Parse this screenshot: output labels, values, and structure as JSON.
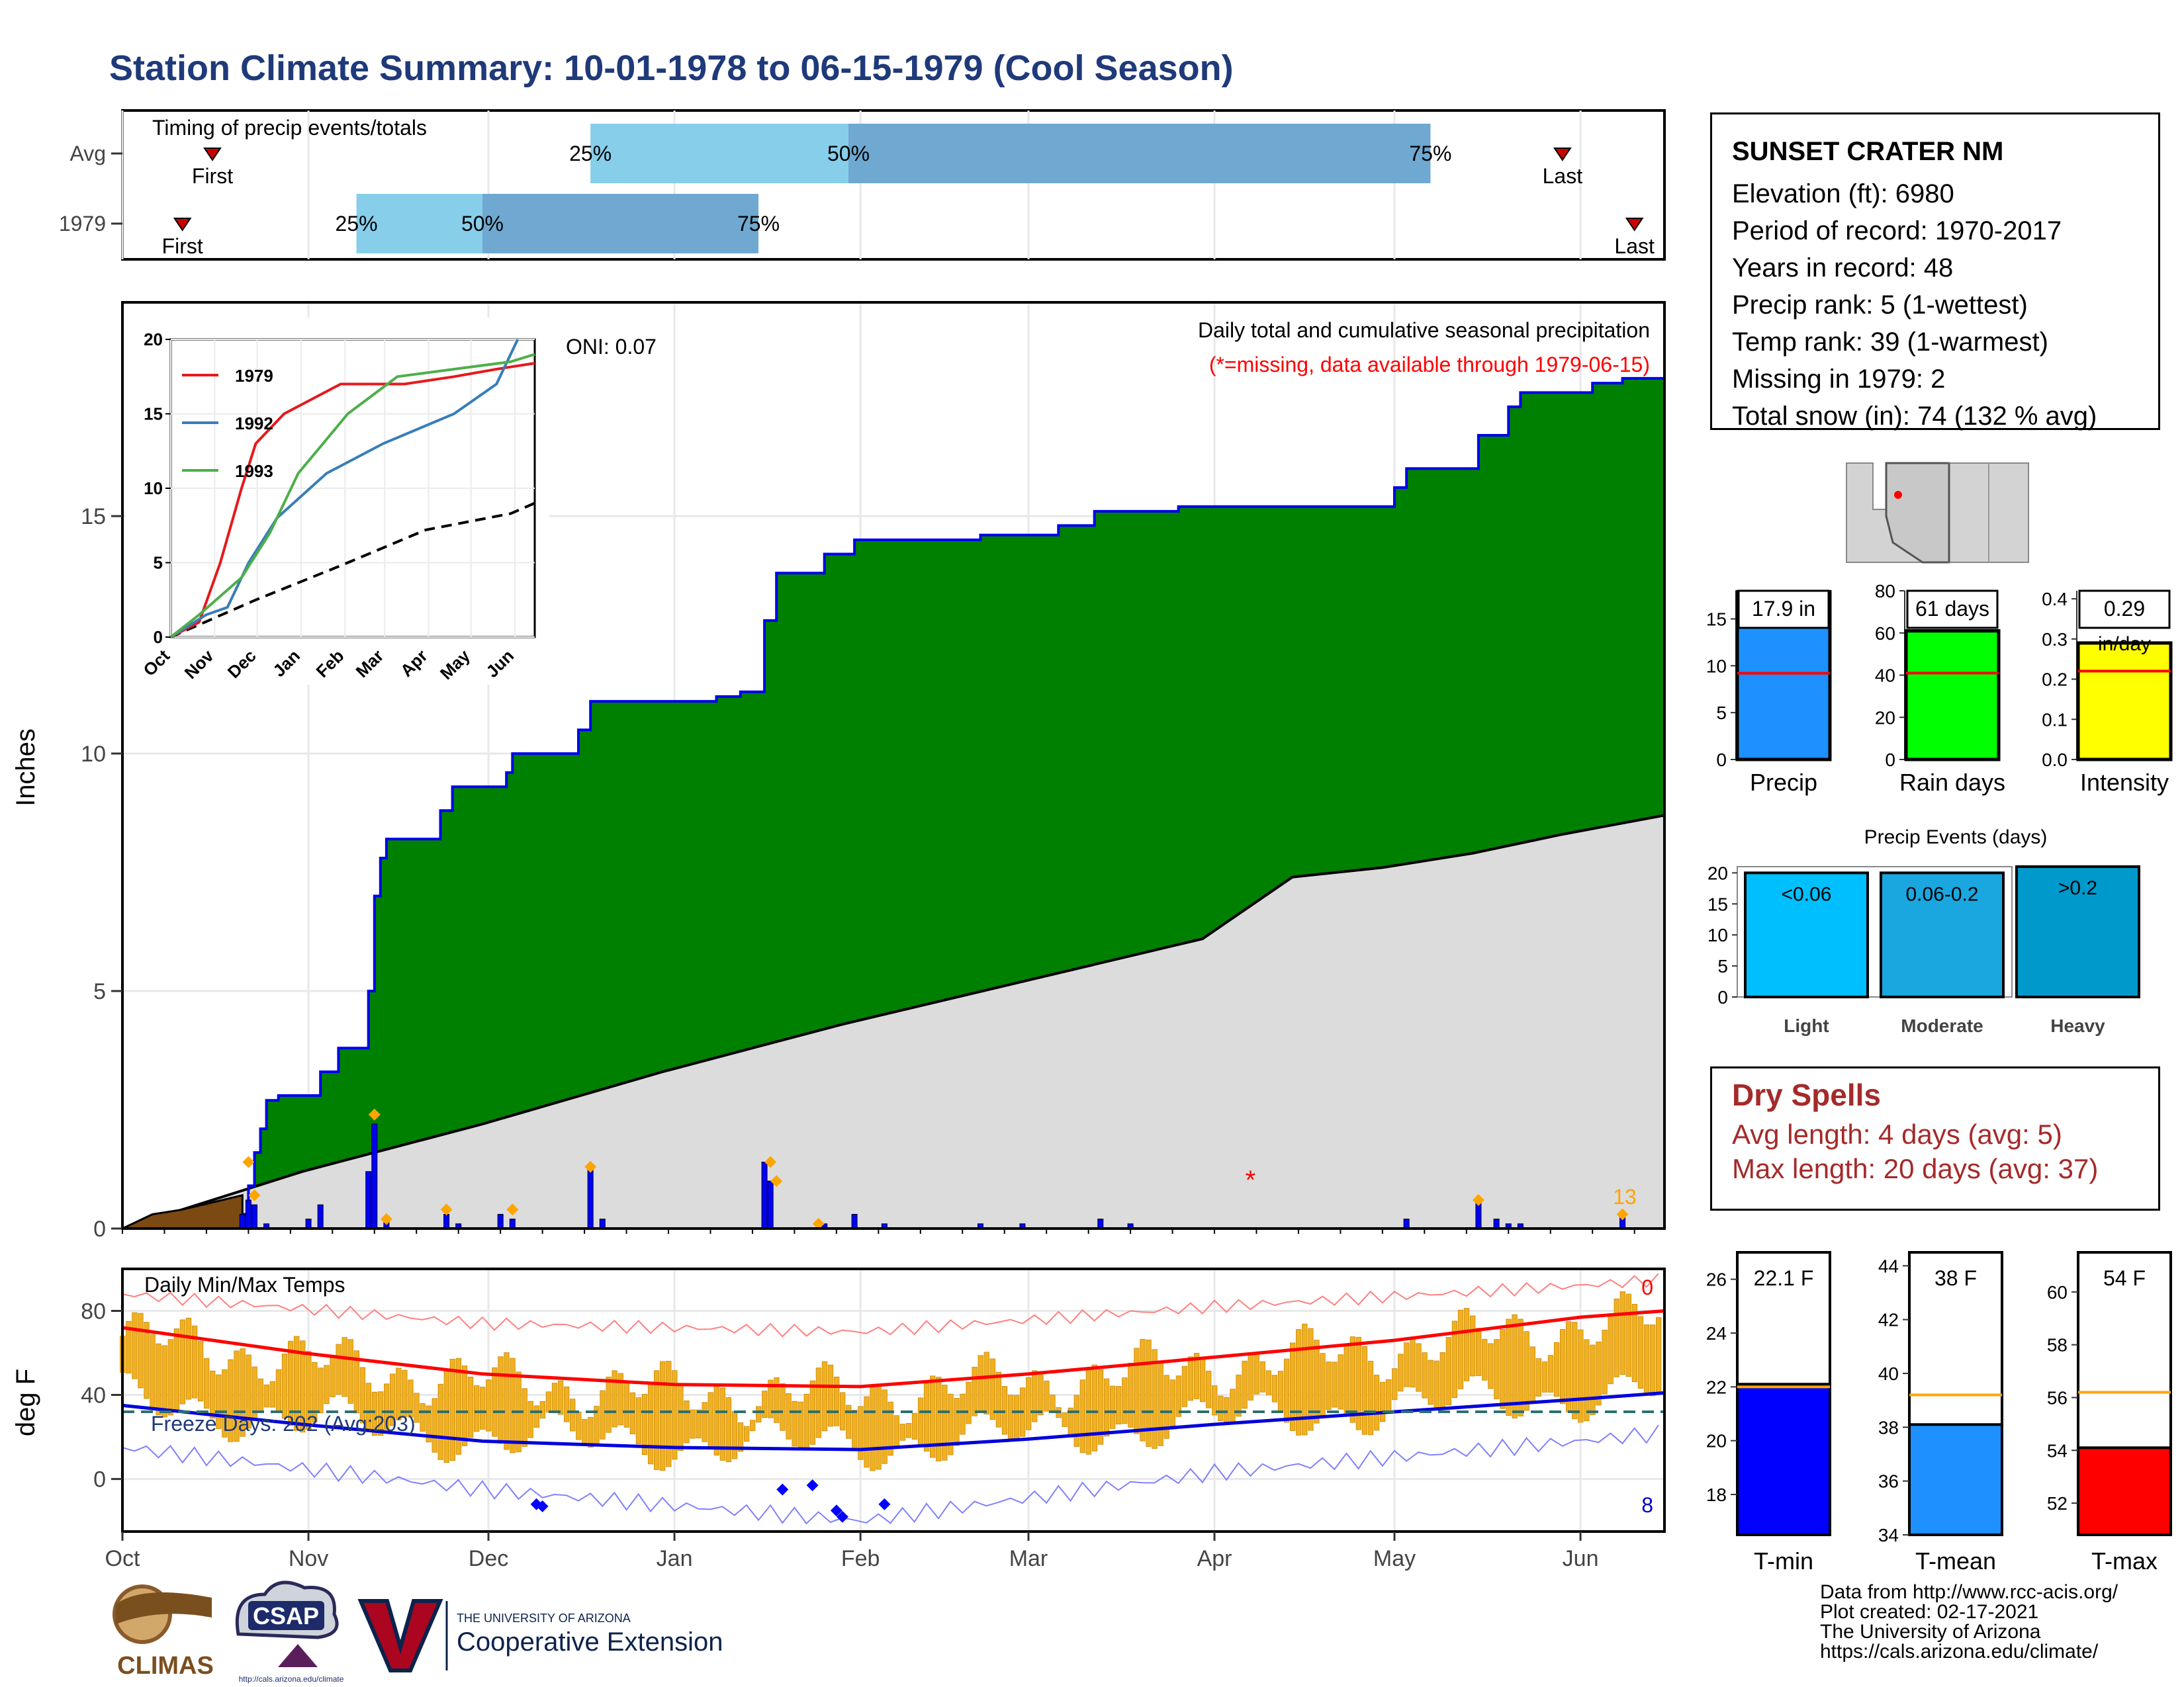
{
  "title": "Station Climate Summary: 10-01-1978 to 06-15-1979 (Cool Season)",
  "colors": {
    "title": "#1f3a7a",
    "precip_green": "#008000",
    "precip_outline": "#0000ee",
    "avg_gray": "#dcdcdc",
    "brown": "#7b4a12",
    "timing_light": "#87ceeb",
    "timing_dark": "#6fa8d0",
    "temp_bar": "#f0b020",
    "tmax_line": "#ff0000",
    "tmin_line": "#0000dd",
    "dry_spell": "#a52a2a"
  },
  "timing": {
    "title": "Timing of precip events/totals",
    "rows": [
      {
        "label": "Avg",
        "first": "First",
        "last": "Last",
        "p25": "25%",
        "p50": "50%",
        "p75": "75%",
        "first_day": 15,
        "last_day": 240,
        "p25_day": 78,
        "p50_day": 121,
        "p75_day": 218
      },
      {
        "label": "1979",
        "first": "First",
        "last": "Last",
        "p25": "25%",
        "p50": "50%",
        "p75": "75%",
        "first_day": 10,
        "last_day": 252,
        "p25_day": 39,
        "p50_day": 60,
        "p75_day": 106
      }
    ]
  },
  "precip_chart": {
    "ylabel": "Inches",
    "yticks": [
      "0",
      "5",
      "10",
      "15"
    ],
    "ylim": [
      0,
      19.5
    ],
    "header": "Daily total and cumulative seasonal precipitation",
    "missing_note": "(*=missing, data available through 1979-06-15)",
    "oni": "ONI: 0.07",
    "count_label": "13",
    "missing_marker_day": 188,
    "cumulative_1979": [
      [
        0,
        0
      ],
      [
        20,
        0
      ],
      [
        20,
        0.3
      ],
      [
        21,
        0.3
      ],
      [
        21,
        0.9
      ],
      [
        22,
        0.9
      ],
      [
        22,
        1.6
      ],
      [
        23,
        1.6
      ],
      [
        23,
        2.1
      ],
      [
        24,
        2.1
      ],
      [
        24,
        2.7
      ],
      [
        26,
        2.7
      ],
      [
        26,
        2.8
      ],
      [
        33,
        2.8
      ],
      [
        33,
        3.3
      ],
      [
        36,
        3.3
      ],
      [
        36,
        3.8
      ],
      [
        41,
        3.8
      ],
      [
        41,
        5.0
      ],
      [
        42,
        5.0
      ],
      [
        42,
        7.0
      ],
      [
        43,
        7.0
      ],
      [
        43,
        7.8
      ],
      [
        44,
        7.8
      ],
      [
        44,
        8.2
      ],
      [
        53,
        8.2
      ],
      [
        53,
        8.8
      ],
      [
        55,
        8.8
      ],
      [
        55,
        9.3
      ],
      [
        64,
        9.3
      ],
      [
        64,
        9.6
      ],
      [
        65,
        9.6
      ],
      [
        65,
        10.0
      ],
      [
        76,
        10.0
      ],
      [
        76,
        10.5
      ],
      [
        78,
        10.5
      ],
      [
        78,
        11.1
      ],
      [
        99,
        11.1
      ],
      [
        99,
        11.2
      ],
      [
        103,
        11.2
      ],
      [
        103,
        11.3
      ],
      [
        107,
        11.3
      ],
      [
        107,
        12.8
      ],
      [
        109,
        12.8
      ],
      [
        109,
        13.8
      ],
      [
        117,
        13.8
      ],
      [
        117,
        14.2
      ],
      [
        122,
        14.2
      ],
      [
        122,
        14.5
      ],
      [
        143,
        14.5
      ],
      [
        143,
        14.6
      ],
      [
        156,
        14.6
      ],
      [
        156,
        14.8
      ],
      [
        162,
        14.8
      ],
      [
        162,
        15.1
      ],
      [
        176,
        15.1
      ],
      [
        176,
        15.2
      ],
      [
        212,
        15.2
      ],
      [
        212,
        15.6
      ],
      [
        214,
        15.6
      ],
      [
        214,
        16.0
      ],
      [
        226,
        16.0
      ],
      [
        226,
        16.7
      ],
      [
        231,
        16.7
      ],
      [
        231,
        17.3
      ],
      [
        233,
        17.3
      ],
      [
        233,
        17.6
      ],
      [
        245,
        17.6
      ],
      [
        245,
        17.8
      ],
      [
        250,
        17.8
      ],
      [
        250,
        17.9
      ],
      [
        257,
        17.9
      ]
    ],
    "average_cumulative": [
      [
        0,
        0
      ],
      [
        30,
        1.2
      ],
      [
        60,
        2.2
      ],
      [
        90,
        3.3
      ],
      [
        120,
        4.3
      ],
      [
        150,
        5.2
      ],
      [
        180,
        6.1
      ],
      [
        195,
        7.4
      ],
      [
        210,
        7.6
      ],
      [
        225,
        7.9
      ],
      [
        240,
        8.3
      ],
      [
        257,
        8.7
      ]
    ],
    "brown_area": [
      [
        0,
        0
      ],
      [
        5,
        0.3
      ],
      [
        10,
        0.4
      ],
      [
        15,
        0.55
      ],
      [
        20,
        0.7
      ]
    ],
    "daily_precip": [
      [
        20,
        0.3
      ],
      [
        21,
        0.6
      ],
      [
        22,
        0.5
      ],
      [
        24,
        0.1
      ],
      [
        31,
        0.2
      ],
      [
        33,
        0.5
      ],
      [
        41,
        1.2
      ],
      [
        42,
        2.2
      ],
      [
        44,
        0.2
      ],
      [
        54,
        0.3
      ],
      [
        56,
        0.1
      ],
      [
        63,
        0.3
      ],
      [
        65,
        0.2
      ],
      [
        78,
        1.3
      ],
      [
        80,
        0.2
      ],
      [
        107,
        1.4
      ],
      [
        108,
        1.0
      ],
      [
        117,
        0.1
      ],
      [
        122,
        0.3
      ],
      [
        127,
        0.1
      ],
      [
        143,
        0.1
      ],
      [
        150,
        0.1
      ],
      [
        163,
        0.2
      ],
      [
        168,
        0.1
      ],
      [
        214,
        0.2
      ],
      [
        226,
        0.6
      ],
      [
        229,
        0.2
      ],
      [
        231,
        0.1
      ],
      [
        233,
        0.1
      ],
      [
        250,
        0.3
      ]
    ],
    "orange_markers": [
      [
        21,
        1.4
      ],
      [
        22,
        0.7
      ],
      [
        42,
        2.4
      ],
      [
        44,
        0.2
      ],
      [
        54,
        0.4
      ],
      [
        65,
        0.4
      ],
      [
        78,
        1.3
      ],
      [
        108,
        1.4
      ],
      [
        109,
        1.0
      ],
      [
        116,
        0.1
      ],
      [
        226,
        0.6
      ],
      [
        250,
        0.3
      ]
    ],
    "x_month_labels": [
      "Oct",
      "Nov",
      "Dec",
      "Jan",
      "Feb",
      "Mar",
      "Apr",
      "May",
      "Jun"
    ],
    "x_month_days": [
      0,
      31,
      61,
      92,
      123,
      151,
      182,
      212,
      243
    ]
  },
  "inset_chart": {
    "yticks": [
      "0",
      "5",
      "10",
      "15",
      "20"
    ],
    "xticks": [
      "Oct",
      "Nov",
      "Dec",
      "Jan",
      "Feb",
      "Mar",
      "Apr",
      "May",
      "Jun"
    ],
    "ylim": [
      0,
      20
    ],
    "series": [
      {
        "name": "1979",
        "color": "#e41a1c",
        "values": [
          [
            0,
            0
          ],
          [
            20,
            1
          ],
          [
            35,
            5
          ],
          [
            50,
            10
          ],
          [
            60,
            13
          ],
          [
            80,
            15
          ],
          [
            120,
            17
          ],
          [
            165,
            17
          ],
          [
            200,
            17.5
          ],
          [
            230,
            18
          ],
          [
            257,
            18.4
          ]
        ]
      },
      {
        "name": "1992",
        "color": "#377eb8",
        "values": [
          [
            0,
            0
          ],
          [
            25,
            1.5
          ],
          [
            40,
            2
          ],
          [
            55,
            5
          ],
          [
            75,
            8
          ],
          [
            110,
            11
          ],
          [
            150,
            13
          ],
          [
            200,
            15
          ],
          [
            230,
            17
          ],
          [
            245,
            20
          ]
        ]
      },
      {
        "name": "1993",
        "color": "#4daf4a",
        "values": [
          [
            0,
            0
          ],
          [
            20,
            1.5
          ],
          [
            50,
            4
          ],
          [
            70,
            7
          ],
          [
            90,
            11
          ],
          [
            125,
            15
          ],
          [
            160,
            17.5
          ],
          [
            200,
            18
          ],
          [
            240,
            18.5
          ],
          [
            257,
            19
          ]
        ]
      }
    ],
    "average_values": [
      [
        0,
        0
      ],
      [
        60,
        2.5
      ],
      [
        120,
        4.8
      ],
      [
        180,
        7.2
      ],
      [
        240,
        8.3
      ],
      [
        257,
        9.0
      ]
    ]
  },
  "temp_chart": {
    "title": "Daily Min/Max Temps",
    "ylabel": "deg F",
    "yticks": [
      "0",
      "40",
      "80"
    ],
    "ylim": [
      -25,
      100
    ],
    "freeze_label": "Freeze Days: 202 (Avg:203)",
    "freeze_line": 32,
    "count_max": "0",
    "count_min": "8",
    "tmax_avg": [
      [
        0,
        72
      ],
      [
        30,
        60
      ],
      [
        60,
        50
      ],
      [
        92,
        45
      ],
      [
        123,
        44
      ],
      [
        151,
        50
      ],
      [
        182,
        58
      ],
      [
        212,
        66
      ],
      [
        243,
        77
      ],
      [
        257,
        80
      ]
    ],
    "tmin_avg": [
      [
        0,
        35
      ],
      [
        30,
        26
      ],
      [
        60,
        18
      ],
      [
        92,
        15
      ],
      [
        123,
        14
      ],
      [
        151,
        19
      ],
      [
        182,
        26
      ],
      [
        212,
        32
      ],
      [
        243,
        38
      ],
      [
        257,
        41
      ]
    ],
    "record_max": [
      [
        0,
        88
      ],
      [
        60,
        74
      ],
      [
        123,
        70
      ],
      [
        182,
        82
      ],
      [
        243,
        92
      ],
      [
        257,
        95
      ]
    ],
    "record_min": [
      [
        0,
        15
      ],
      [
        60,
        -5
      ],
      [
        123,
        -20
      ],
      [
        182,
        3
      ],
      [
        243,
        18
      ],
      [
        257,
        22
      ]
    ],
    "cold_markers": [
      [
        69,
        -12
      ],
      [
        70,
        -13
      ],
      [
        110,
        -5
      ],
      [
        115,
        -3
      ],
      [
        119,
        -15
      ],
      [
        120,
        -18
      ],
      [
        127,
        -12
      ]
    ]
  },
  "station": {
    "name": "SUNSET CRATER NM",
    "elevation": "Elevation (ft): 6980",
    "period": "Period of record: 1970-2017",
    "years": "Years in record: 48",
    "precip_rank": "Precip rank: 5 (1-wettest)",
    "temp_rank": "Temp rank: 39 (1-warmest)",
    "missing": "Missing in 1979: 2",
    "snow": "Total snow (in): 74 (132 % avg)"
  },
  "summary_bars": [
    {
      "label": "Precip",
      "value_label": "17.9 in",
      "value": 17.9,
      "avg": 9.2,
      "ymax": 18,
      "yticks": [
        "0",
        "5",
        "10",
        "15"
      ],
      "color": "#1e90ff"
    },
    {
      "label": "Rain days",
      "value_label": "61 days",
      "value": 61,
      "avg": 41,
      "ymax": 80,
      "yticks": [
        "0",
        "20",
        "40",
        "60",
        "80"
      ],
      "color": "#00ff00"
    },
    {
      "label": "Intensity",
      "value_label": "0.29",
      "value_sub": "in/day",
      "value": 0.29,
      "avg": 0.22,
      "ymax": 0.42,
      "yticks": [
        "0.0",
        "0.1",
        "0.2",
        "0.3",
        "0.4"
      ],
      "color": "#ffff00"
    }
  ],
  "events": {
    "title": "Precip Events (days)",
    "yticks": [
      "0",
      "5",
      "10",
      "15",
      "20"
    ],
    "ymax": 21,
    "bars": [
      {
        "category": "Light",
        "label": "<0.06",
        "value": 20,
        "color": "#00bfff"
      },
      {
        "category": "Moderate",
        "label": "0.06-0.2",
        "value": 20,
        "color": "#1aa7e0"
      },
      {
        "category": "Heavy",
        "label": ">0.2",
        "value": 21,
        "color": "#0099cc"
      }
    ]
  },
  "dry_spells": {
    "title": "Dry Spells",
    "avg": "Avg length: 4 days (avg: 5)",
    "max": "Max length: 20 days (avg: 37)"
  },
  "temp_bars": [
    {
      "label": "T-min",
      "value_label": "22.1 F",
      "value": 22.1,
      "avg": 22.0,
      "ymin": 16.5,
      "ymax": 27,
      "yticks": [
        "18",
        "20",
        "22",
        "24",
        "26"
      ],
      "color": "#0000ff"
    },
    {
      "label": "T-mean",
      "value_label": "38 F",
      "value": 38.1,
      "avg": 39.2,
      "ymin": 34,
      "ymax": 44.5,
      "yticks": [
        "34",
        "36",
        "38",
        "40",
        "42",
        "44"
      ],
      "color": "#1e90ff"
    },
    {
      "label": "T-max",
      "value_label": "54 F",
      "value": 54.1,
      "avg": 56.2,
      "ymin": 50.8,
      "ymax": 61.5,
      "yticks": [
        "52",
        "54",
        "56",
        "58",
        "60"
      ],
      "color": "#ff0000"
    }
  ],
  "logos": {
    "climas": "CLIMAS",
    "csap": "CSAP",
    "csap_url": "http://cals.arizona.edu/climate",
    "ua_small": "THE UNIVERSITY OF ARIZONA",
    "ua_big": "Cooperative Extension"
  },
  "credits": {
    "line1": "Data from http://www.rcc-acis.org/",
    "line2": "Plot created: 02-17-2021",
    "line3": "The University of Arizona",
    "line4": "https://cals.arizona.edu/climate/"
  }
}
